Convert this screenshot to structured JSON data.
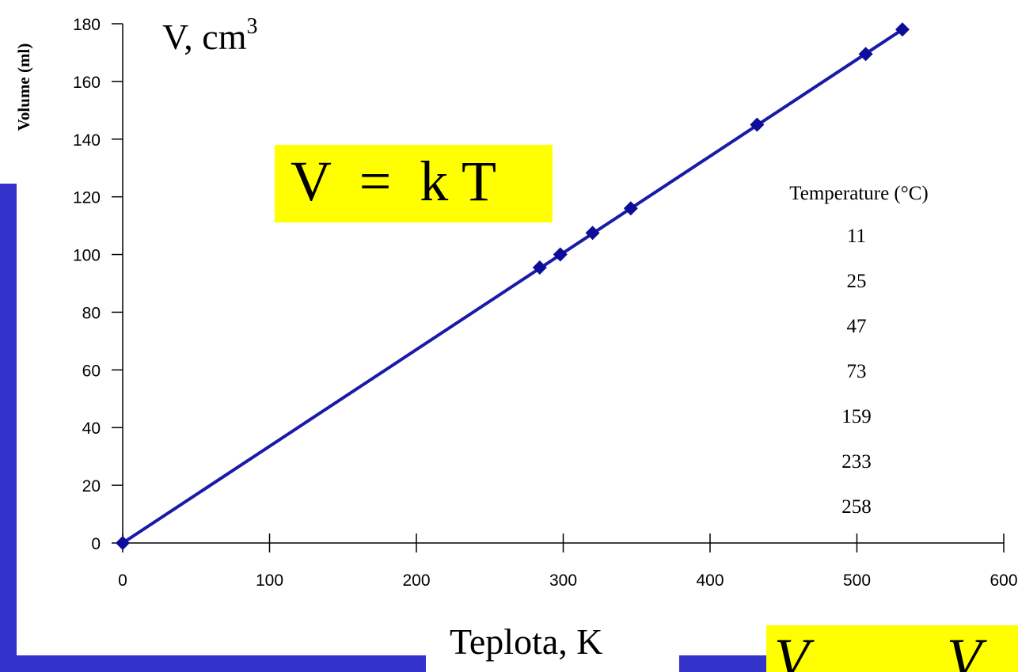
{
  "colors": {
    "background": "#ffffff",
    "slide_accent": "#3333cc",
    "line": "#1a1aa8",
    "marker": "#0d0d99",
    "highlight": "#ffff00",
    "text": "#000000"
  },
  "slide": {
    "y_label": "V, cm",
    "y_label_superscript": "3",
    "x_label": "Teplota, K",
    "formula_label": "V  =  k T",
    "formula_corner_left": "V",
    "formula_corner_right": "V"
  },
  "chart_data": {
    "type": "scatter",
    "ylabel": "Volume (ml)",
    "xlabel": "",
    "xlim": [
      0,
      600
    ],
    "ylim": [
      0,
      180
    ],
    "x_ticks": [
      "0",
      "100",
      "200",
      "300",
      "400",
      "500",
      "600"
    ],
    "y_ticks": [
      "0",
      "20",
      "40",
      "60",
      "80",
      "100",
      "120",
      "140",
      "160",
      "180"
    ],
    "series": [
      {
        "x": [
          0,
          284,
          298,
          320,
          346,
          432,
          506,
          531
        ],
        "y": [
          0,
          95.5,
          100,
          107.5,
          116,
          145,
          169.5,
          178
        ]
      }
    ],
    "fit_line": {
      "x": [
        0,
        531
      ],
      "y": [
        0,
        178
      ]
    },
    "table": {
      "header": "Temperature (°C)",
      "values": [
        "11",
        "25",
        "47",
        "73",
        "159",
        "233",
        "258"
      ]
    },
    "grid": false,
    "legend": "none"
  }
}
